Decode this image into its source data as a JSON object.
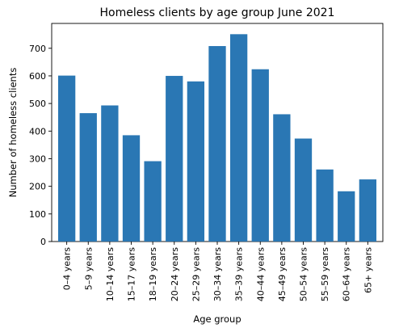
{
  "chart_data": {
    "type": "bar",
    "title": "Homeless clients by age group June 2021",
    "xlabel": "Age group",
    "ylabel": "Number of homeless clients",
    "categories": [
      "0–4 years",
      "5–9 years",
      "10–14 years",
      "15–17 years",
      "18–19 years",
      "20–24 years",
      "25–29 years",
      "30–34 years",
      "35–39 years",
      "40–44 years",
      "45–49 years",
      "50–54 years",
      "55–59 years",
      "60–64 years",
      "65+ years"
    ],
    "values": [
      601,
      465,
      493,
      385,
      291,
      600,
      580,
      708,
      751,
      624,
      461,
      373,
      261,
      182,
      225
    ],
    "ylim": [
      0,
      790
    ],
    "yticks": [
      0,
      100,
      200,
      300,
      400,
      500,
      600,
      700
    ],
    "grid": false,
    "legend": "none",
    "bar_color": "#2a77b4"
  }
}
